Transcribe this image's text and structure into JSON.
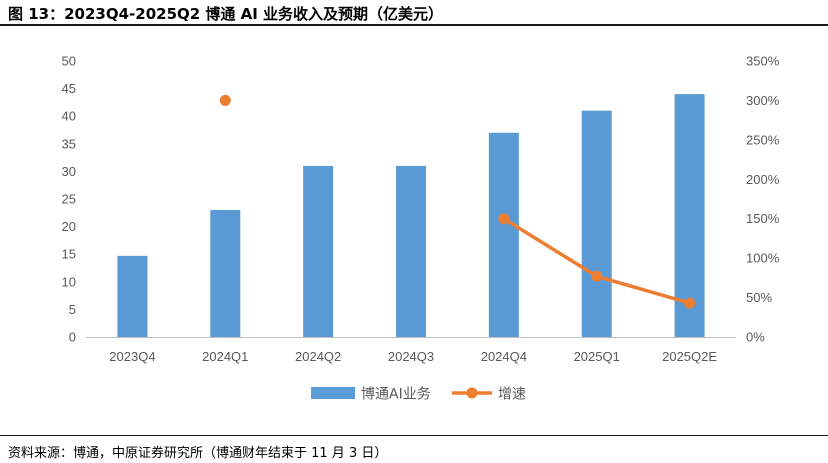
{
  "title": "图 13：2023Q4-2025Q2 博通 AI 业务收入及预期（亿美元）",
  "source": "资料来源：博通，中原证券研究所（博通财年结束于 11 月 3 日）",
  "colors": {
    "bar": "#5b9bd5",
    "line": "#ed7d31",
    "axis": "#bfbfbf",
    "text": "#595959"
  },
  "chart_data": {
    "type": "bar+line",
    "categories": [
      "2023Q4",
      "2024Q1",
      "2024Q2",
      "2024Q3",
      "2024Q4",
      "2025Q1",
      "2025Q2E"
    ],
    "series": [
      {
        "name": "博通AI业务",
        "type": "bar",
        "axis": "left",
        "values": [
          14.7,
          23,
          31,
          31,
          37,
          41,
          44
        ]
      },
      {
        "name": "增速",
        "type": "line",
        "axis": "right",
        "values": [
          null,
          300,
          null,
          null,
          150,
          77,
          43
        ]
      }
    ],
    "left_axis": {
      "ylim": [
        0,
        50
      ],
      "ticks": [
        "0",
        "5",
        "10",
        "15",
        "20",
        "25",
        "30",
        "35",
        "40",
        "45",
        "50"
      ]
    },
    "right_axis": {
      "ylim": [
        0,
        350
      ],
      "ticks": [
        "0%",
        "50%",
        "100%",
        "150%",
        "200%",
        "250%",
        "300%",
        "350%"
      ]
    },
    "grid": false,
    "legend": "bottom-center"
  }
}
